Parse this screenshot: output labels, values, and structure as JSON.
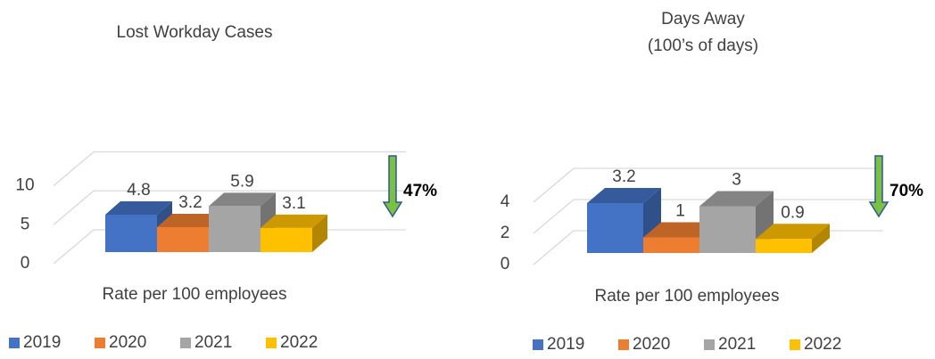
{
  "chart_data": [
    {
      "type": "bar",
      "title": "Lost Workday Cases",
      "x_label": "Rate per 100 employees",
      "series": [
        {
          "name": "2019",
          "color": "#4472c4",
          "values": [
            4.8
          ]
        },
        {
          "name": "2020",
          "color": "#ed7d31",
          "values": [
            3.2
          ]
        },
        {
          "name": "2021",
          "color": "#a5a5a5",
          "values": [
            5.9
          ]
        },
        {
          "name": "2022",
          "color": "#ffc000",
          "values": [
            3.1
          ]
        }
      ],
      "ylim": [
        0,
        10
      ],
      "yticks": [
        0,
        5,
        10
      ],
      "grid": true,
      "annotation": "47%"
    },
    {
      "type": "bar",
      "title": "Days Away",
      "subtitle": "(100’s of days)",
      "x_label": "Rate per 100 employees",
      "series": [
        {
          "name": "2019",
          "color": "#4472c4",
          "values": [
            3.2
          ]
        },
        {
          "name": "2020",
          "color": "#ed7d31",
          "values": [
            1
          ]
        },
        {
          "name": "2021",
          "color": "#a5a5a5",
          "values": [
            3
          ]
        },
        {
          "name": "2022",
          "color": "#ffc000",
          "values": [
            0.9
          ]
        }
      ],
      "ylim": [
        0,
        4
      ],
      "yticks": [
        0,
        2,
        4
      ],
      "grid": true,
      "annotation": "70%"
    }
  ]
}
